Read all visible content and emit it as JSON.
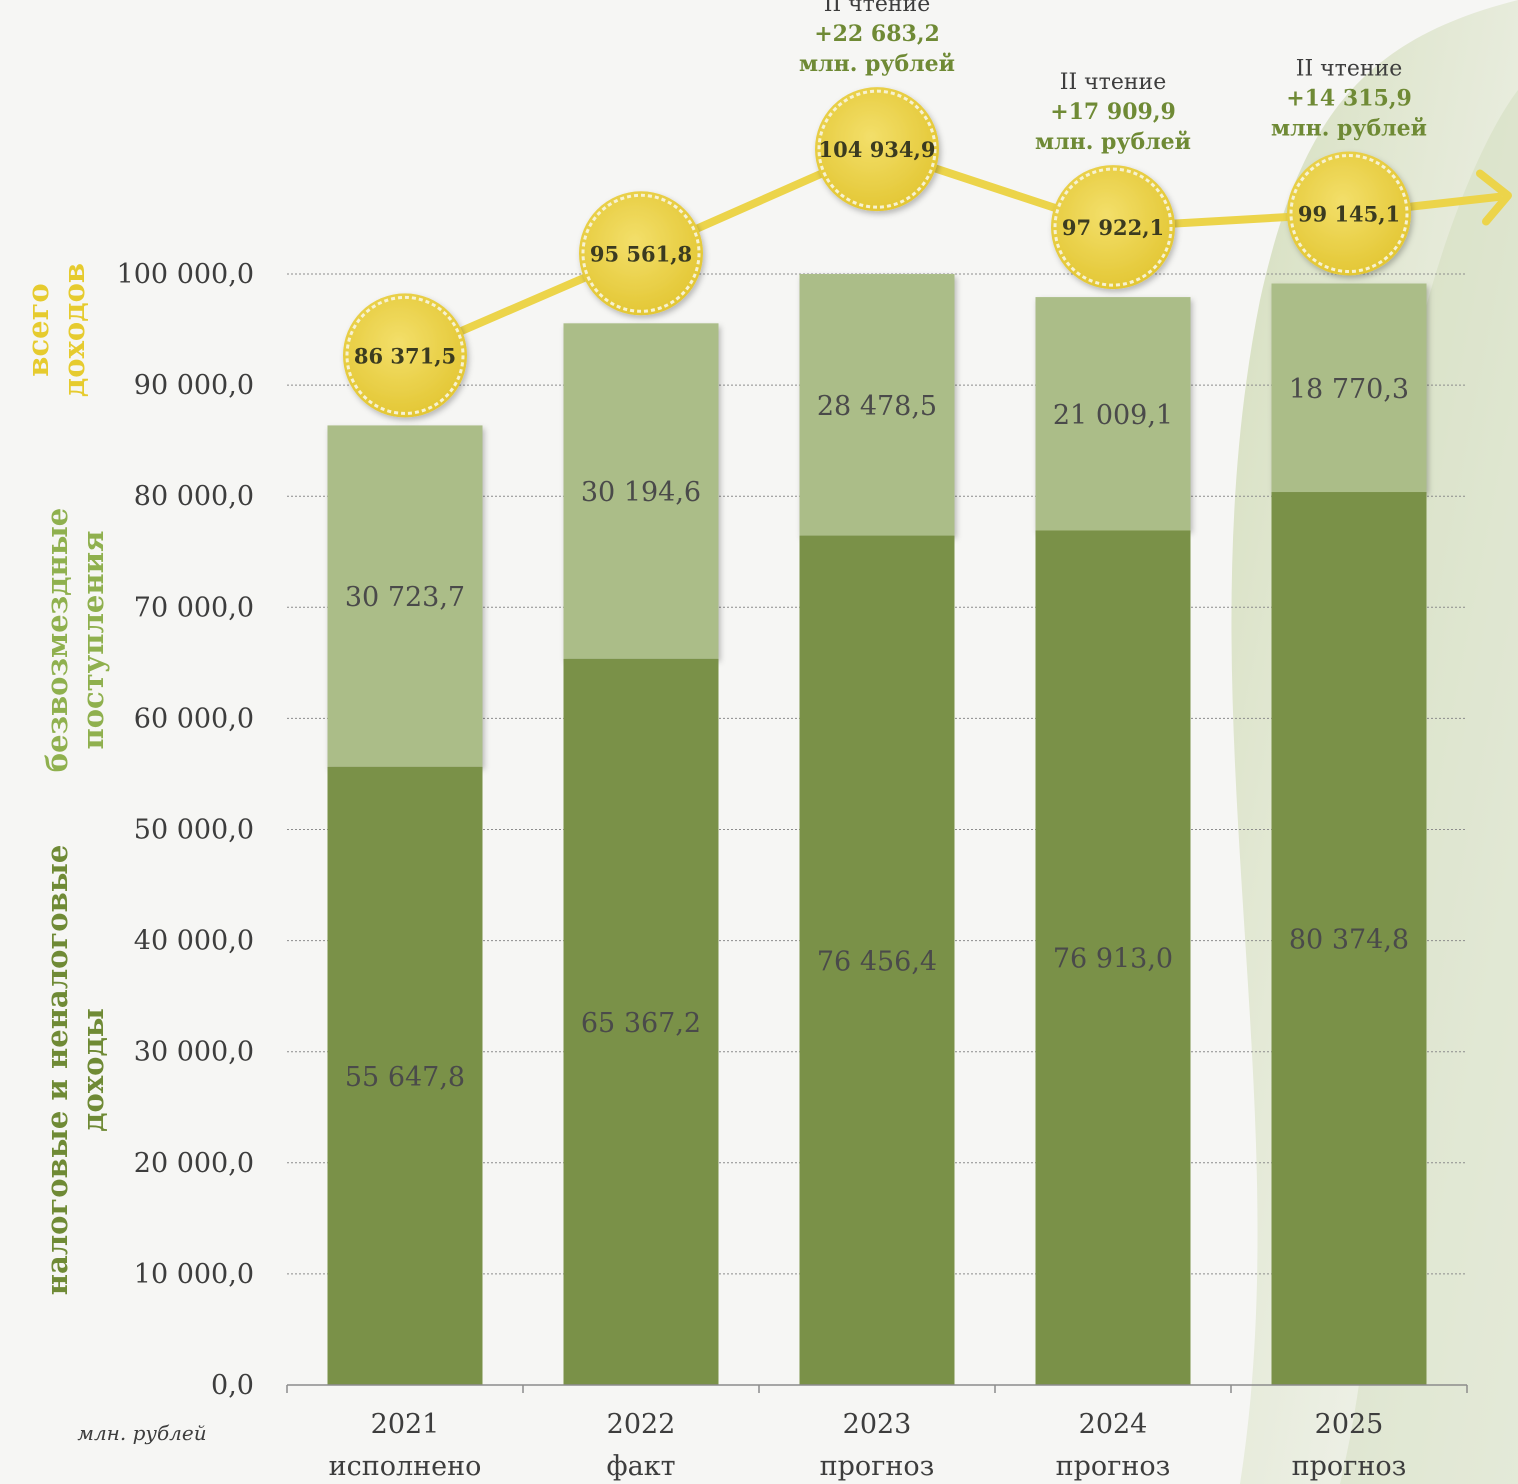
{
  "chart_data": {
    "type": "bar",
    "stacked": true,
    "ylim": [
      0,
      100000
    ],
    "yticks": [
      "0,0",
      "10 000,0",
      "20 000,0",
      "30 000,0",
      "40 000,0",
      "50 000,0",
      "60 000,0",
      "70 000,0",
      "80 000,0",
      "90 000,0",
      "100 000,0"
    ],
    "grid": true,
    "unit_label": "млн. рублей",
    "categories": [
      {
        "year": "2021",
        "status": "исполнено"
      },
      {
        "year": "2022",
        "status": "факт"
      },
      {
        "year": "2023",
        "status": "прогноз"
      },
      {
        "year": "2024",
        "status": "прогноз"
      },
      {
        "year": "2025",
        "status": "прогноз"
      }
    ],
    "series": [
      {
        "name": "налоговые и неналоговые доходы",
        "values": [
          55647.8,
          65367.2,
          76456.4,
          76913.0,
          80374.8
        ],
        "labels": [
          "55 647,8",
          "65 367,2",
          "76 456,4",
          "76 913,0",
          "80 374,8"
        ],
        "color": "#7a9148"
      },
      {
        "name": "безвозмездные поступления",
        "values": [
          30723.7,
          30194.6,
          28478.5,
          21009.1,
          18770.3
        ],
        "labels": [
          "30 723,7",
          "30 194,6",
          "28 478,5",
          "21 009,1",
          "18 770,3"
        ],
        "color": "#abbd88"
      }
    ],
    "totals": {
      "name": "всего доходов",
      "values": [
        86371.5,
        95561.8,
        104934.9,
        97922.1,
        99145.1
      ],
      "labels": [
        "86 371,5",
        "95 561,8",
        "104 934,9",
        "97 922,1",
        "99 145,1"
      ],
      "color": "#ecd44a"
    },
    "side_labels": [
      {
        "lines": [
          "всего",
          "доходов"
        ],
        "color": "#e6cb2e"
      },
      {
        "lines": [
          "безвозмездные",
          "поступления"
        ],
        "color": "#8fb04e"
      },
      {
        "lines": [
          "налоговые и неналоговые",
          "доходы"
        ],
        "color": "#6f8a35"
      }
    ],
    "annotations": [
      {
        "category": "2023",
        "lines": [
          "II чтение",
          "+22 683,2",
          "млн. рублей"
        ]
      },
      {
        "category": "2024",
        "lines": [
          "II чтение",
          "+17 909,9",
          "млн. рублей"
        ]
      },
      {
        "category": "2025",
        "lines": [
          "II чтение",
          "+14 315,9",
          "млн. рублей"
        ]
      }
    ]
  }
}
